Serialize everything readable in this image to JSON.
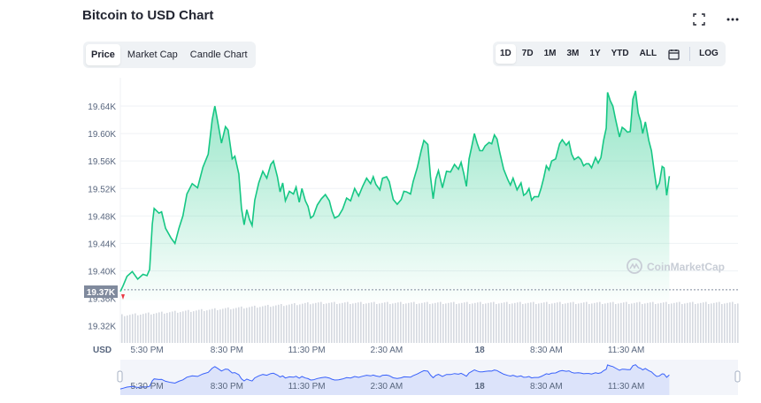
{
  "title": "Bitcoin to USD Chart",
  "top_icons": [
    "fullscreen-icon",
    "more-icon"
  ],
  "tabs": [
    {
      "label": "Price",
      "active": true
    },
    {
      "label": "Market Cap",
      "active": false
    },
    {
      "label": "Candle Chart",
      "active": false
    }
  ],
  "ranges": [
    {
      "label": "1D",
      "active": true
    },
    {
      "label": "7D",
      "active": false
    },
    {
      "label": "1M",
      "active": false
    },
    {
      "label": "3M",
      "active": false
    },
    {
      "label": "1Y",
      "active": false
    },
    {
      "label": "YTD",
      "active": false
    },
    {
      "label": "ALL",
      "active": false
    }
  ],
  "log_label": "LOG",
  "watermark": "CoinMarketCap",
  "volume_axis_label": "USD",
  "colors": {
    "line": "#16c784",
    "fill": "#16c784",
    "navigator": "#3861fb",
    "marker": "#ea3943",
    "label_bg": "#808a9d"
  },
  "chart_data": {
    "type": "area",
    "title": "Bitcoin to USD Chart",
    "ylim": [
      19340,
      19680
    ],
    "y_ticks": [
      "19.64K",
      "19.60K",
      "19.56K",
      "19.52K",
      "19.48K",
      "19.44K",
      "19.40K",
      "19.36K",
      "19.32K"
    ],
    "y_tick_values": [
      19640,
      19600,
      19560,
      19520,
      19480,
      19440,
      19400,
      19360,
      19320
    ],
    "x_ticks": [
      "5:30 PM",
      "8:30 PM",
      "11:30 PM",
      "2:30 AM",
      "18",
      "8:30 AM",
      "11:30 AM"
    ],
    "x_tick_hours": [
      1.0,
      4.0,
      7.0,
      10.0,
      13.5,
      16.0,
      19.0
    ],
    "x_range_hours": [
      0,
      23.2
    ],
    "current_price_label": "19.37K",
    "current_price": 19370,
    "price_series": [
      [
        0.0,
        19370
      ],
      [
        0.1,
        19378
      ],
      [
        0.25,
        19392
      ],
      [
        0.45,
        19399
      ],
      [
        0.65,
        19388
      ],
      [
        0.85,
        19395
      ],
      [
        1.0,
        19393
      ],
      [
        1.1,
        19402
      ],
      [
        1.2,
        19468
      ],
      [
        1.27,
        19491
      ],
      [
        1.45,
        19484
      ],
      [
        1.55,
        19486
      ],
      [
        1.7,
        19462
      ],
      [
        1.9,
        19448
      ],
      [
        2.05,
        19440
      ],
      [
        2.2,
        19462
      ],
      [
        2.35,
        19480
      ],
      [
        2.5,
        19512
      ],
      [
        2.7,
        19527
      ],
      [
        2.9,
        19521
      ],
      [
        3.1,
        19551
      ],
      [
        3.3,
        19570
      ],
      [
        3.45,
        19620
      ],
      [
        3.55,
        19640
      ],
      [
        3.65,
        19619
      ],
      [
        3.8,
        19586
      ],
      [
        3.95,
        19610
      ],
      [
        4.05,
        19605
      ],
      [
        4.2,
        19563
      ],
      [
        4.3,
        19567
      ],
      [
        4.45,
        19541
      ],
      [
        4.55,
        19491
      ],
      [
        4.65,
        19467
      ],
      [
        4.75,
        19489
      ],
      [
        4.85,
        19475
      ],
      [
        4.95,
        19466
      ],
      [
        5.05,
        19503
      ],
      [
        5.2,
        19528
      ],
      [
        5.35,
        19545
      ],
      [
        5.5,
        19535
      ],
      [
        5.65,
        19555
      ],
      [
        5.75,
        19560
      ],
      [
        5.9,
        19537
      ],
      [
        6.0,
        19515
      ],
      [
        6.1,
        19528
      ],
      [
        6.2,
        19502
      ],
      [
        6.35,
        19516
      ],
      [
        6.5,
        19512
      ],
      [
        6.6,
        19522
      ],
      [
        6.72,
        19500
      ],
      [
        6.82,
        19520
      ],
      [
        6.95,
        19502
      ],
      [
        7.05,
        19494
      ],
      [
        7.15,
        19477
      ],
      [
        7.25,
        19480
      ],
      [
        7.4,
        19496
      ],
      [
        7.55,
        19505
      ],
      [
        7.7,
        19511
      ],
      [
        7.85,
        19502
      ],
      [
        7.95,
        19487
      ],
      [
        8.05,
        19477
      ],
      [
        8.2,
        19480
      ],
      [
        8.35,
        19490
      ],
      [
        8.5,
        19506
      ],
      [
        8.65,
        19502
      ],
      [
        8.8,
        19520
      ],
      [
        8.95,
        19509
      ],
      [
        9.1,
        19523
      ],
      [
        9.25,
        19535
      ],
      [
        9.4,
        19527
      ],
      [
        9.5,
        19537
      ],
      [
        9.6,
        19526
      ],
      [
        9.75,
        19518
      ],
      [
        9.85,
        19535
      ],
      [
        10.0,
        19537
      ],
      [
        10.1,
        19530
      ],
      [
        10.25,
        19504
      ],
      [
        10.4,
        19497
      ],
      [
        10.55,
        19504
      ],
      [
        10.65,
        19516
      ],
      [
        10.75,
        19515
      ],
      [
        10.9,
        19512
      ],
      [
        11.0,
        19530
      ],
      [
        11.15,
        19550
      ],
      [
        11.3,
        19575
      ],
      [
        11.4,
        19590
      ],
      [
        11.55,
        19584
      ],
      [
        11.65,
        19537
      ],
      [
        11.75,
        19505
      ],
      [
        11.85,
        19534
      ],
      [
        11.95,
        19546
      ],
      [
        12.1,
        19521
      ],
      [
        12.25,
        19545
      ],
      [
        12.4,
        19544
      ],
      [
        12.55,
        19555
      ],
      [
        12.7,
        19548
      ],
      [
        12.8,
        19558
      ],
      [
        12.9,
        19542
      ],
      [
        13.0,
        19523
      ],
      [
        13.1,
        19563
      ],
      [
        13.2,
        19581
      ],
      [
        13.3,
        19600
      ],
      [
        13.4,
        19586
      ],
      [
        13.5,
        19575
      ],
      [
        13.6,
        19575
      ],
      [
        13.7,
        19582
      ],
      [
        13.85,
        19587
      ],
      [
        13.95,
        19585
      ],
      [
        14.05,
        19598
      ],
      [
        14.15,
        19592
      ],
      [
        14.25,
        19573
      ],
      [
        14.4,
        19548
      ],
      [
        14.55,
        19533
      ],
      [
        14.65,
        19525
      ],
      [
        14.75,
        19535
      ],
      [
        14.9,
        19518
      ],
      [
        15.05,
        19528
      ],
      [
        15.15,
        19510
      ],
      [
        15.25,
        19513
      ],
      [
        15.35,
        19520
      ],
      [
        15.45,
        19503
      ],
      [
        15.55,
        19508
      ],
      [
        15.7,
        19508
      ],
      [
        15.8,
        19520
      ],
      [
        15.9,
        19535
      ],
      [
        16.0,
        19553
      ],
      [
        16.1,
        19547
      ],
      [
        16.2,
        19560
      ],
      [
        16.35,
        19563
      ],
      [
        16.5,
        19585
      ],
      [
        16.6,
        19591
      ],
      [
        16.75,
        19583
      ],
      [
        16.85,
        19588
      ],
      [
        16.95,
        19570
      ],
      [
        17.05,
        19562
      ],
      [
        17.2,
        19566
      ],
      [
        17.3,
        19562
      ],
      [
        17.4,
        19553
      ],
      [
        17.5,
        19556
      ],
      [
        17.6,
        19556
      ],
      [
        17.7,
        19550
      ],
      [
        17.85,
        19565
      ],
      [
        17.95,
        19557
      ],
      [
        18.05,
        19565
      ],
      [
        18.15,
        19590
      ],
      [
        18.25,
        19608
      ],
      [
        18.3,
        19660
      ],
      [
        18.4,
        19648
      ],
      [
        18.5,
        19640
      ],
      [
        18.6,
        19621
      ],
      [
        18.75,
        19595
      ],
      [
        18.85,
        19609
      ],
      [
        18.95,
        19606
      ],
      [
        19.05,
        19602
      ],
      [
        19.15,
        19603
      ],
      [
        19.25,
        19650
      ],
      [
        19.35,
        19662
      ],
      [
        19.45,
        19630
      ],
      [
        19.55,
        19617
      ],
      [
        19.62,
        19600
      ],
      [
        19.72,
        19617
      ],
      [
        19.85,
        19590
      ],
      [
        19.95,
        19575
      ],
      [
        20.05,
        19546
      ],
      [
        20.15,
        19520
      ],
      [
        20.25,
        19528
      ],
      [
        20.35,
        19552
      ],
      [
        20.42,
        19550
      ],
      [
        20.52,
        19510
      ],
      [
        20.62,
        19538
      ]
    ]
  }
}
